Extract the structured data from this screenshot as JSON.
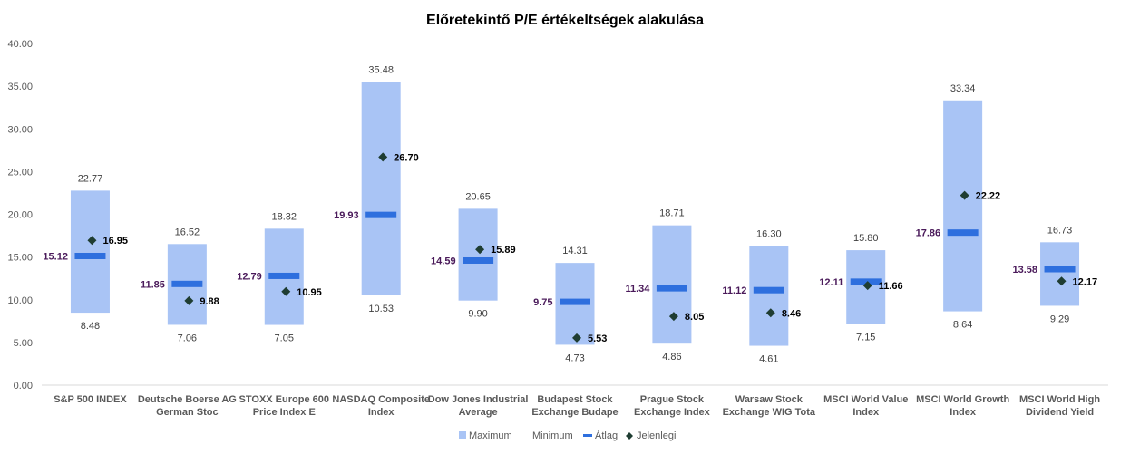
{
  "chart_data": {
    "type": "range-bar",
    "title": "Előretekintő P/E értékeltségek alakulása",
    "ylim": [
      0,
      40
    ],
    "yticks": [
      "0.00",
      "5.00",
      "10.00",
      "15.00",
      "20.00",
      "25.00",
      "30.00",
      "35.00",
      "40.00"
    ],
    "categories": [
      [
        "S&P 500 INDEX"
      ],
      [
        "Deutsche Boerse AG",
        "German Stoc"
      ],
      [
        "STOXX Europe 600",
        "Price Index E"
      ],
      [
        "NASDAQ Composite",
        "Index"
      ],
      [
        "Dow Jones Industrial",
        "Average"
      ],
      [
        "Budapest Stock",
        "Exchange Budape"
      ],
      [
        "Prague Stock",
        "Exchange Index"
      ],
      [
        "Warsaw Stock",
        "Exchange WIG Tota"
      ],
      [
        "MSCI World Value",
        "Index"
      ],
      [
        "MSCI World Growth",
        "Index"
      ],
      [
        "MSCI World High",
        "Dividend Yield"
      ]
    ],
    "series": [
      {
        "name": "Maximum",
        "values": [
          22.77,
          16.52,
          18.32,
          35.48,
          20.65,
          14.31,
          18.71,
          16.3,
          15.8,
          33.34,
          16.73
        ]
      },
      {
        "name": "Minimum",
        "values": [
          8.48,
          7.06,
          7.05,
          10.53,
          9.9,
          4.73,
          4.86,
          4.61,
          7.15,
          8.64,
          9.29
        ]
      },
      {
        "name": "Átlag",
        "values": [
          15.12,
          11.85,
          12.79,
          19.93,
          14.59,
          9.75,
          11.34,
          11.12,
          12.11,
          17.86,
          13.58
        ]
      },
      {
        "name": "Jelenlegi",
        "values": [
          16.95,
          9.88,
          10.95,
          26.7,
          15.89,
          5.53,
          8.05,
          8.46,
          11.66,
          22.22,
          12.17
        ]
      }
    ],
    "labels": {
      "max": [
        "22.77",
        "16.52",
        "18.32",
        "35.48",
        "20.65",
        "14.31",
        "18.71",
        "16.30",
        "15.80",
        "33.34",
        "16.73"
      ],
      "min": [
        "8.48",
        "7.06",
        "7.05",
        "10.53",
        "9.90",
        "4.73",
        "4.86",
        "4.61",
        "7.15",
        "8.64",
        "9.29"
      ],
      "avg": [
        "15.12",
        "11.85",
        "12.79",
        "19.93",
        "14.59",
        "9.75",
        "11.34",
        "11.12",
        "12.11",
        "17.86",
        "13.58"
      ],
      "cur": [
        "16.95",
        "9.88",
        "10.95",
        "26.70",
        "15.89",
        "5.53",
        "8.05",
        "8.46",
        "11.66",
        "22.22",
        "12.17"
      ]
    },
    "legend": {
      "position": "bottom",
      "items": [
        "Maximum",
        "Minimum",
        "Átlag",
        "Jelenlegi"
      ]
    },
    "grid": false,
    "colors": {
      "range": "#a9c4f5",
      "avg": "#2e6fde",
      "cur": "#1f3d32",
      "avg_label": "#4a1a5a"
    }
  }
}
